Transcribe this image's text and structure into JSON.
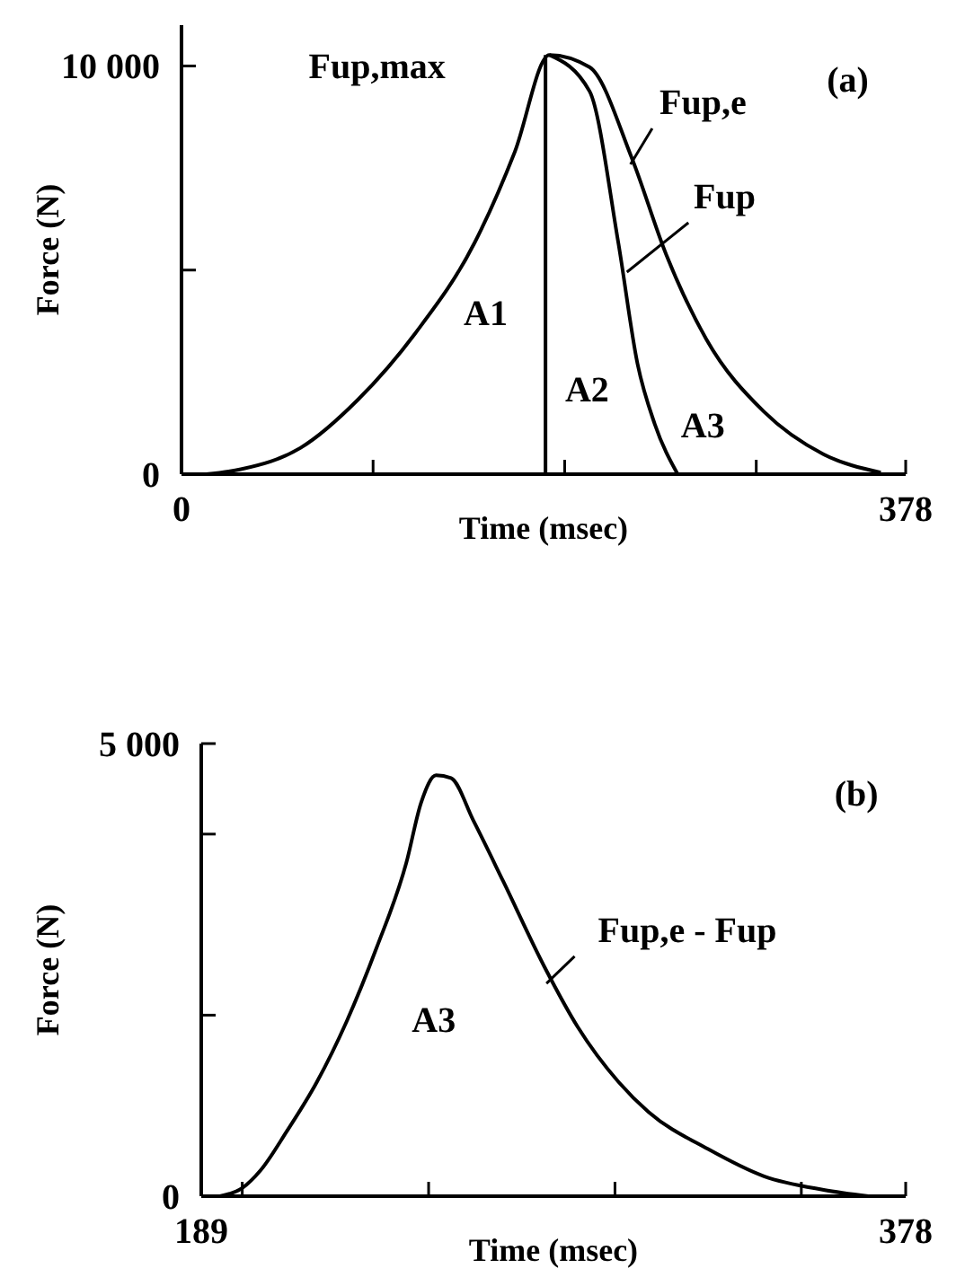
{
  "chart_data": [
    {
      "type": "line",
      "xlabel": "Time (msec)",
      "ylabel": "Force (N)",
      "xlim": [
        0,
        378
      ],
      "ylim": [
        0,
        11000
      ],
      "xticks": [
        0,
        {
          "value": 100,
          "label": null
        },
        {
          "value": 200,
          "label": null
        },
        {
          "value": 300,
          "label": null
        },
        378
      ],
      "yticks": [
        0,
        {
          "value": 5000,
          "label": null
        },
        {
          "value": 10000,
          "label": "10 000"
        }
      ],
      "series": [
        {
          "name": "Fup,e",
          "color": "#000000",
          "x": [
            13,
            31,
            62,
            92,
            122,
            153,
            174,
            192,
            213,
            235,
            253,
            274,
            304,
            335,
            365
          ],
          "values": [
            0,
            120,
            640,
            1820,
            3450,
            5670,
            7900,
            10270,
            9970,
            7750,
            5380,
            3300,
            1530,
            490,
            40
          ]
        },
        {
          "name": "Fup",
          "color": "#000000",
          "x": [
            192,
            213,
            228,
            238,
            247,
            259
          ],
          "values": [
            10270,
            9380,
            5670,
            2710,
            1230,
            0
          ]
        },
        {
          "color": "#000000",
          "x": [
            190,
            190
          ],
          "values": [
            0,
            10270
          ]
        }
      ],
      "annotations": [
        "Fup,max",
        "(a)",
        "A1",
        "A2",
        "A3"
      ]
    },
    {
      "type": "line",
      "xlabel": "Time (msec)",
      "ylabel": "Force (N)",
      "xlim": [
        189,
        378
      ],
      "ylim": [
        0,
        5000
      ],
      "xticks": [
        189,
        {
          "value": 200,
          "label": null
        },
        {
          "value": 250,
          "label": null
        },
        {
          "value": 300,
          "label": null
        },
        {
          "value": 350,
          "label": null
        },
        378
      ],
      "yticks": [
        0,
        {
          "value": 2000,
          "label": null
        },
        {
          "value": 4000,
          "label": null
        },
        {
          "value": 5000,
          "label": "5 000"
        }
      ],
      "series": [
        {
          "name": "Fup,e - Fup",
          "color": "#000000",
          "x": [
            194,
            200,
            205,
            212,
            220,
            228,
            236,
            244,
            248,
            252,
            256,
            262,
            270,
            281,
            290,
            301,
            309,
            325,
            340,
            356,
            368
          ],
          "values": [
            0,
            90,
            290,
            720,
            1260,
            1930,
            2740,
            3680,
            4350,
            4650,
            4620,
            4150,
            3480,
            2540,
            1870,
            1260,
            930,
            520,
            220,
            70,
            0
          ]
        }
      ],
      "annotations": [
        "(b)",
        "A3"
      ]
    }
  ]
}
